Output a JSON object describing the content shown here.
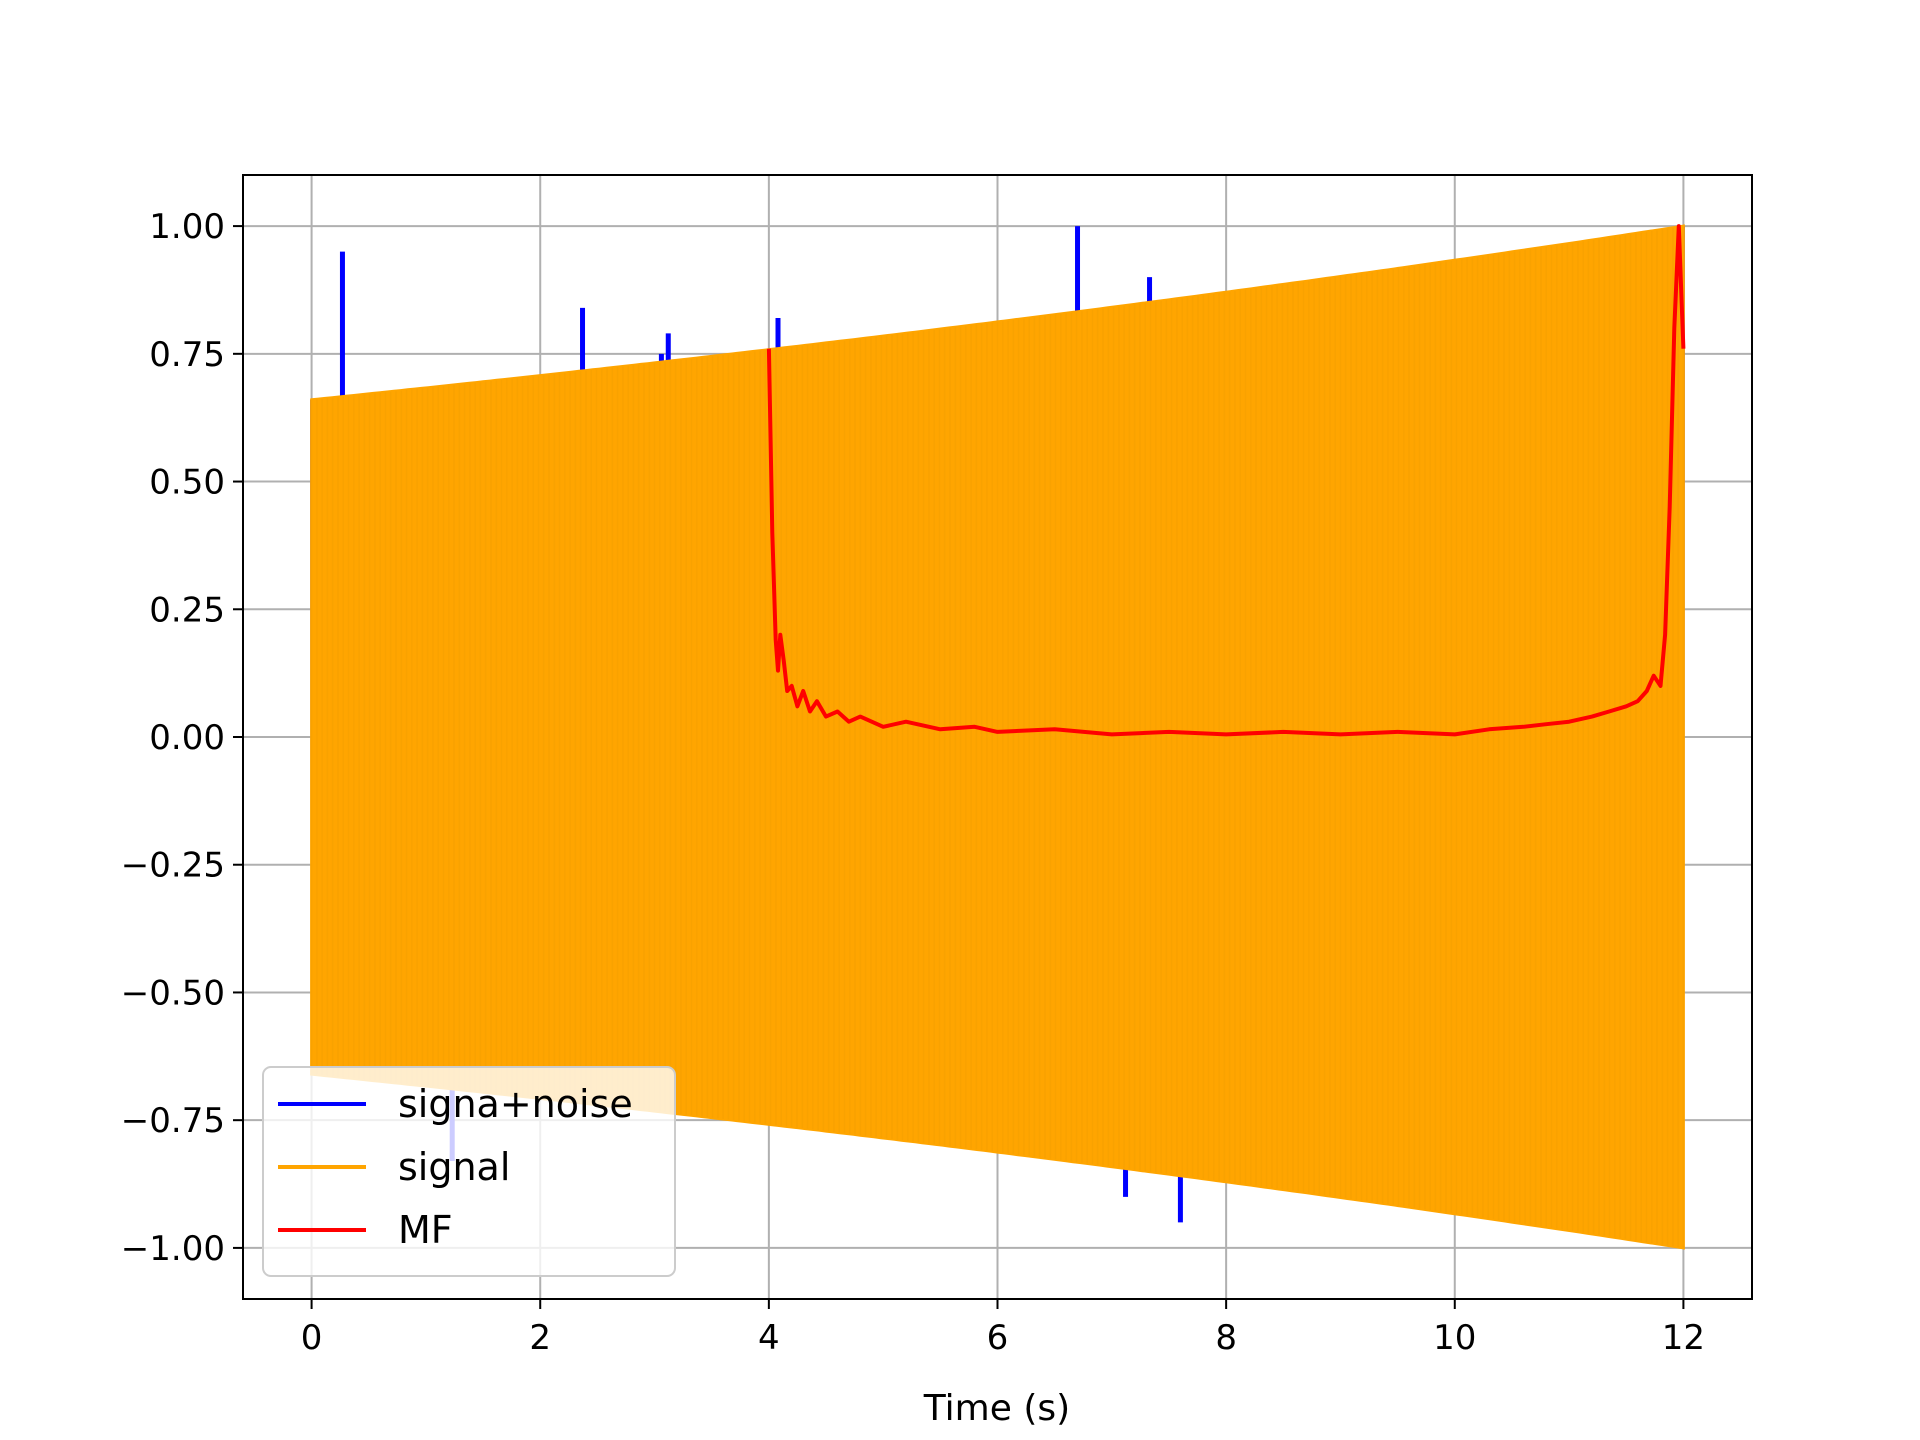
{
  "chart_data": {
    "type": "line",
    "title": "",
    "xlabel": "Time (s)",
    "ylabel": "",
    "xlim": [
      -0.6,
      12.6
    ],
    "ylim": [
      -1.1,
      1.1
    ],
    "xticks": [
      0,
      2,
      4,
      6,
      8,
      10,
      12
    ],
    "xtick_labels": [
      "0",
      "2",
      "4",
      "6",
      "8",
      "10",
      "12"
    ],
    "yticks": [
      1.0,
      0.75,
      0.5,
      0.25,
      0.0,
      -0.25,
      -0.5,
      -0.75,
      -1.0
    ],
    "ytick_labels": [
      "1.00",
      "0.75",
      "0.50",
      "0.25",
      "0.00",
      "−0.25",
      "−0.50",
      "−0.75",
      "−1.00"
    ],
    "grid": true,
    "legend_position": "lower-left",
    "series": [
      {
        "name": "signa+noise",
        "color": "#0000ff",
        "x_range": [
          0,
          12
        ],
        "envelope_start": 0.66,
        "envelope_end": 1.0,
        "spikes": [
          {
            "x": 0.27,
            "y": 0.95
          },
          {
            "x": 0.45,
            "y": -0.67
          },
          {
            "x": 1.23,
            "y": -0.83
          },
          {
            "x": 2.37,
            "y": 0.84
          },
          {
            "x": 3.06,
            "y": 0.75
          },
          {
            "x": 3.12,
            "y": 0.79
          },
          {
            "x": 4.08,
            "y": 0.82
          },
          {
            "x": 6.7,
            "y": 1.0
          },
          {
            "x": 6.72,
            "y": -0.78
          },
          {
            "x": 7.12,
            "y": -0.9
          },
          {
            "x": 7.33,
            "y": 0.9
          },
          {
            "x": 7.58,
            "y": 0.81
          },
          {
            "x": 7.62,
            "y": 0.86
          },
          {
            "x": 7.6,
            "y": -0.95
          }
        ]
      },
      {
        "name": "signal",
        "color": "#ffa500",
        "x_range": [
          0,
          12
        ],
        "envelope_start": 0.66,
        "envelope_end": 1.0
      },
      {
        "name": "MF",
        "color": "#ff0000",
        "points": [
          [
            4.0,
            0.76
          ],
          [
            4.03,
            0.4
          ],
          [
            4.06,
            0.19
          ],
          [
            4.08,
            0.13
          ],
          [
            4.1,
            0.2
          ],
          [
            4.13,
            0.15
          ],
          [
            4.16,
            0.09
          ],
          [
            4.2,
            0.1
          ],
          [
            4.25,
            0.06
          ],
          [
            4.3,
            0.09
          ],
          [
            4.36,
            0.05
          ],
          [
            4.42,
            0.07
          ],
          [
            4.5,
            0.04
          ],
          [
            4.6,
            0.05
          ],
          [
            4.7,
            0.03
          ],
          [
            4.8,
            0.04
          ],
          [
            5.0,
            0.02
          ],
          [
            5.2,
            0.03
          ],
          [
            5.5,
            0.015
          ],
          [
            5.8,
            0.02
          ],
          [
            6.0,
            0.01
          ],
          [
            6.5,
            0.015
          ],
          [
            7.0,
            0.005
          ],
          [
            7.5,
            0.01
          ],
          [
            8.0,
            0.005
          ],
          [
            8.5,
            0.01
          ],
          [
            9.0,
            0.005
          ],
          [
            9.5,
            0.01
          ],
          [
            10.0,
            0.005
          ],
          [
            10.3,
            0.015
          ],
          [
            10.6,
            0.02
          ],
          [
            10.8,
            0.025
          ],
          [
            11.0,
            0.03
          ],
          [
            11.2,
            0.04
          ],
          [
            11.35,
            0.05
          ],
          [
            11.5,
            0.06
          ],
          [
            11.6,
            0.07
          ],
          [
            11.68,
            0.09
          ],
          [
            11.74,
            0.12
          ],
          [
            11.8,
            0.1
          ],
          [
            11.84,
            0.2
          ],
          [
            11.88,
            0.45
          ],
          [
            11.92,
            0.8
          ],
          [
            11.96,
            1.0
          ],
          [
            12.0,
            0.76
          ]
        ]
      }
    ]
  }
}
